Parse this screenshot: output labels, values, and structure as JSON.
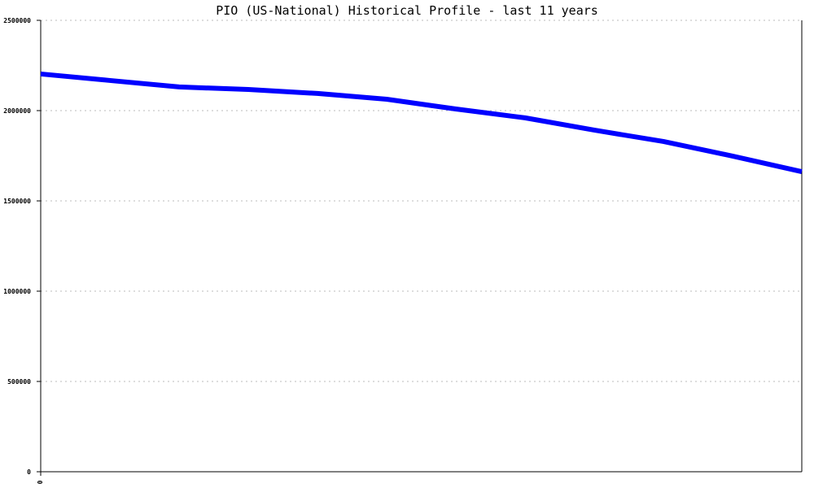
{
  "chart_data": {
    "type": "line",
    "title": "PIO (US-National) Historical Profile - last 11 years",
    "xlabel": "",
    "ylabel": "",
    "ylim": [
      0,
      2500000
    ],
    "yticks": [
      "0",
      "500000",
      "1000000",
      "1500000",
      "2000000",
      "2500000"
    ],
    "xticks": [
      "0"
    ],
    "grid": true,
    "series": [
      {
        "color": "#0000ff",
        "x": [
          0,
          1,
          2,
          3,
          4,
          5,
          6,
          7,
          8,
          9,
          10,
          11
        ],
        "values": [
          2203000,
          2167000,
          2131000,
          2117000,
          2095000,
          2063000,
          2009000,
          1960000,
          1892000,
          1829000,
          1748000,
          1662000
        ]
      }
    ]
  }
}
